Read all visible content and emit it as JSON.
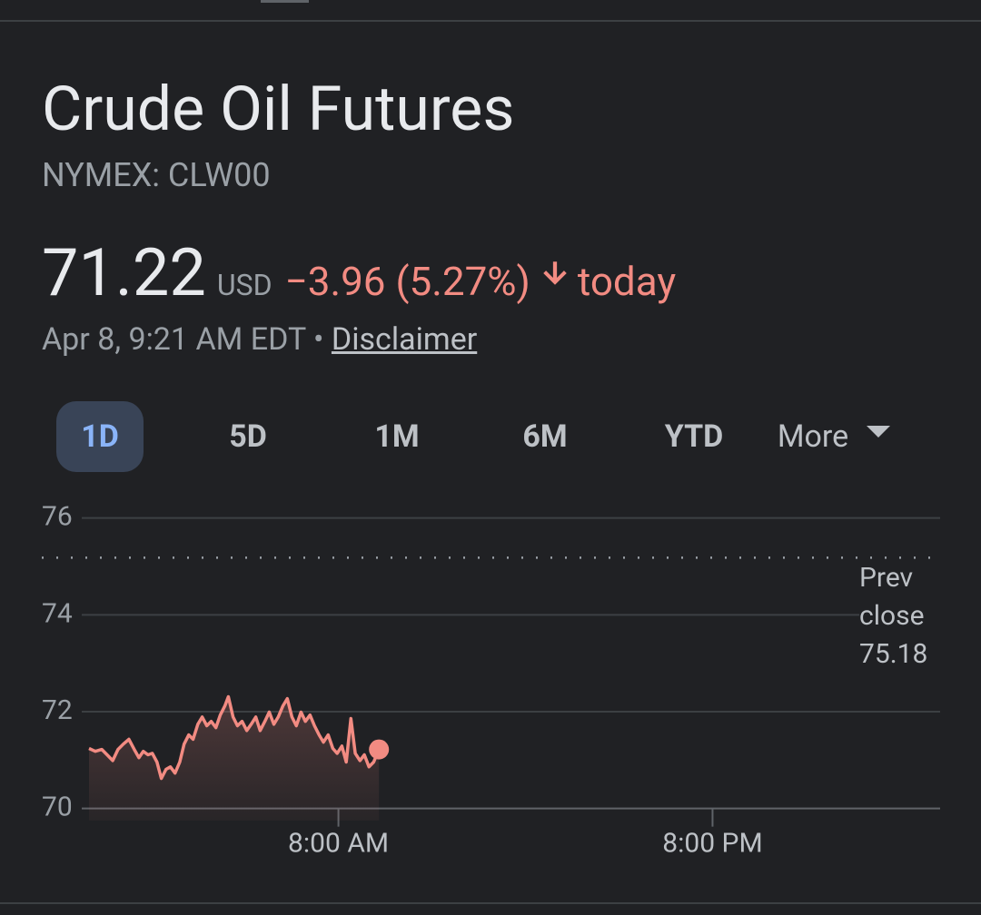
{
  "header": {
    "title": "Crude Oil Futures",
    "ticker": "NYMEX: CLW00",
    "price": "71.22",
    "currency": "USD",
    "change": "−3.96 (5.27%)",
    "change_suffix": "today",
    "timestamp": "Apr 8, 9:21 AM EDT",
    "separator": "•",
    "disclaimer": "Disclaimer"
  },
  "tabs": [
    "1D",
    "5D",
    "1M",
    "6M",
    "YTD",
    "More"
  ],
  "active_tab": 0,
  "chart_data": {
    "type": "line",
    "x": [
      0.0,
      0.2,
      0.41,
      0.58,
      0.76,
      0.93,
      1.1,
      1.28,
      1.45,
      1.6,
      1.74,
      1.89,
      2.03,
      2.18,
      2.32,
      2.47,
      2.61,
      2.76,
      2.91,
      3.05,
      3.2,
      3.34,
      3.49,
      3.63,
      3.78,
      3.92,
      4.07,
      4.21,
      4.36,
      4.47,
      4.62,
      4.76,
      4.91,
      5.06,
      5.2,
      5.35,
      5.49,
      5.64,
      5.78,
      5.93,
      6.07,
      6.22,
      6.36,
      6.51,
      6.65,
      6.8,
      6.94,
      7.09,
      7.23,
      7.38,
      7.52,
      7.67,
      7.82,
      7.96,
      8.11,
      8.25,
      8.4,
      8.54,
      8.69,
      8.83,
      8.98,
      9.13,
      9.3
    ],
    "series": [
      {
        "color": "#f28b82",
        "values": [
          71.24,
          71.18,
          71.22,
          71.11,
          70.99,
          71.22,
          71.33,
          71.43,
          71.22,
          71.05,
          71.18,
          71.11,
          71.14,
          70.96,
          70.62,
          70.81,
          70.86,
          70.73,
          70.96,
          71.33,
          71.52,
          71.43,
          71.74,
          71.89,
          71.71,
          71.8,
          71.67,
          71.93,
          72.12,
          72.31,
          71.89,
          71.71,
          71.8,
          71.61,
          71.74,
          71.89,
          71.61,
          71.8,
          71.99,
          71.74,
          71.89,
          72.12,
          72.27,
          71.89,
          71.71,
          71.99,
          71.8,
          71.93,
          71.71,
          71.52,
          71.37,
          71.52,
          71.24,
          71.14,
          71.29,
          70.96,
          71.86,
          71.14,
          70.99,
          71.11,
          70.86,
          70.96,
          71.22
        ]
      }
    ],
    "xlim": [
      0,
      27.3
    ],
    "xticks": [
      {
        "value": 8,
        "label": "8:00 AM"
      },
      {
        "value": 20,
        "label": "8:00 PM"
      }
    ],
    "ylim": [
      69.75,
      76.5
    ],
    "yticks": [
      70,
      72,
      74,
      76
    ],
    "grid": true,
    "prev_close_label": "Prev close",
    "prev_close": 75.18
  }
}
